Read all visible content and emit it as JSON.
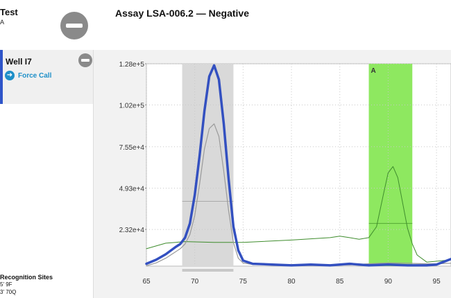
{
  "test": {
    "title": "Test",
    "subtitle": "A"
  },
  "assay": {
    "title": "Assay LSA-006.2 — Negative"
  },
  "well": {
    "title": "Well I7",
    "force_call_label": "Force Call"
  },
  "recognition": {
    "title": "Recognition Sites",
    "line1": "5' 9F",
    "line2": "3' 70Q"
  },
  "icons": {
    "remove": "minus-circle-icon",
    "force_call": "arrow-right-circle-icon"
  },
  "chart_data": {
    "type": "line",
    "x_ticks": [
      65,
      70,
      75,
      80,
      85,
      90,
      95
    ],
    "y_ticks": [
      "1.28e+5",
      "1.02e+5",
      "7.55e+4",
      "4.93e+4",
      "2.32e+4"
    ],
    "y_tick_values": [
      128000,
      102000,
      75500,
      49300,
      23200
    ],
    "xlim": [
      65,
      96.5
    ],
    "ylim": [
      0,
      128000
    ],
    "grid": true,
    "regions": [
      {
        "label": "",
        "x": [
          68.7,
          74
        ],
        "color": "#d9d9d9"
      },
      {
        "label": "A",
        "x": [
          88,
          92.5
        ],
        "color": "#8ee860"
      }
    ],
    "region_lines": [
      {
        "x": [
          68.7,
          74
        ],
        "y": 41000,
        "color": "#aaaaaa"
      },
      {
        "x": [
          88,
          92.5
        ],
        "y": 27000,
        "color": "#55a935"
      }
    ],
    "series": [
      {
        "color": "#3350c0",
        "width": 3.5,
        "x": [
          65,
          66,
          67,
          68,
          68.5,
          69,
          69.5,
          70,
          70.5,
          71,
          71.5,
          72,
          72.5,
          73,
          73.5,
          74,
          74.5,
          75,
          76,
          78,
          80,
          82,
          84,
          86,
          88,
          90,
          92,
          94,
          95,
          96.5
        ],
        "y": [
          1500,
          4000,
          7500,
          12000,
          14000,
          18000,
          27000,
          45000,
          70000,
          98000,
          120000,
          127000,
          118000,
          90000,
          55000,
          25000,
          10000,
          3500,
          1500,
          1000,
          500,
          1000,
          500,
          1500,
          500,
          1000,
          500,
          500,
          1000,
          4500
        ]
      },
      {
        "color": "#9a9a9a",
        "width": 1.2,
        "x": [
          65,
          66,
          67,
          68,
          68.5,
          69,
          69.5,
          70,
          70.5,
          71,
          71.5,
          72,
          72.5,
          73,
          73.5,
          74,
          74.5,
          75,
          76,
          78,
          80,
          82,
          84,
          86,
          88,
          90,
          92,
          94,
          95,
          96.5
        ],
        "y": [
          200,
          2000,
          5000,
          9000,
          11000,
          14000,
          20000,
          32000,
          52000,
          74000,
          87000,
          90000,
          82000,
          60000,
          35000,
          15000,
          5000,
          2000,
          1000,
          800,
          600,
          600,
          600,
          700,
          1500,
          2000,
          1800,
          1500,
          1500,
          1800
        ]
      },
      {
        "color": "#3e8c2c",
        "width": 1,
        "x": [
          65,
          67,
          69,
          72,
          75,
          80,
          84,
          85,
          86,
          87,
          88,
          88.8,
          89.5,
          90,
          90.5,
          91,
          91.5,
          92,
          92.5,
          93,
          94,
          96.5
        ],
        "y": [
          11000,
          14500,
          15500,
          15000,
          15000,
          16500,
          18000,
          19000,
          18000,
          17000,
          18000,
          25000,
          45000,
          59000,
          63000,
          56000,
          40000,
          24000,
          14000,
          7000,
          2500,
          4000
        ]
      }
    ]
  }
}
